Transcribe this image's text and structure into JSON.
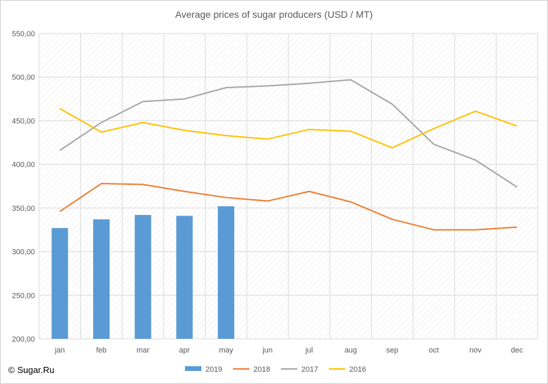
{
  "chart_data": {
    "type": "bar+line",
    "title": "Average prices of sugar producers (USD / MT)",
    "categories": [
      "jan",
      "feb",
      "mar",
      "apr",
      "may",
      "jun",
      "jul",
      "aug",
      "sep",
      "oct",
      "nov",
      "dec"
    ],
    "ylim": [
      200,
      550
    ],
    "yticks": [
      "200,00",
      "250,00",
      "300,00",
      "350,00",
      "400,00",
      "450,00",
      "500,00",
      "550,00"
    ],
    "grid": true,
    "legend_position": "bottom",
    "series": [
      {
        "name": "2019",
        "kind": "bar",
        "color": "#5b9bd5",
        "values": [
          327,
          337,
          342,
          341,
          352,
          null,
          null,
          null,
          null,
          null,
          null,
          null
        ]
      },
      {
        "name": "2018",
        "kind": "line",
        "color": "#ed7d31",
        "values": [
          346,
          378,
          377,
          369,
          362,
          358,
          369,
          357,
          337,
          325,
          325,
          328
        ]
      },
      {
        "name": "2017",
        "kind": "line",
        "color": "#a5a5a5",
        "values": [
          416,
          448,
          472,
          475,
          488,
          490,
          493,
          497,
          469,
          423,
          405,
          374
        ]
      },
      {
        "name": "2016",
        "kind": "line",
        "color": "#ffc000",
        "values": [
          464,
          437,
          448,
          439,
          433,
          429,
          440,
          438,
          419,
          441,
          461,
          444
        ]
      }
    ]
  },
  "credit": "© Sugar.Ru"
}
